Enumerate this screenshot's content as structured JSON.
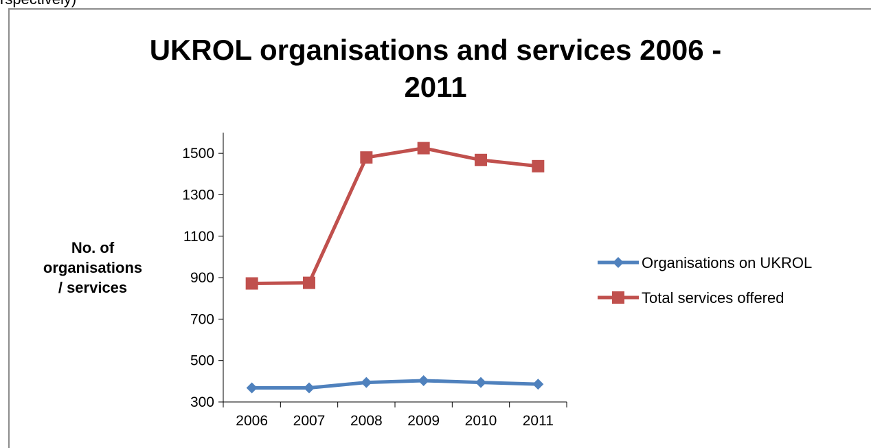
{
  "page": {
    "top_fragment": "rspectively)"
  },
  "chart_data": {
    "type": "line",
    "title_lines": [
      "UKROL organisations and services 2006 -",
      "2011"
    ],
    "ylabel_lines": [
      "No. of",
      "organisations",
      "/ services"
    ],
    "xlabel": "",
    "categories": [
      "2006",
      "2007",
      "2008",
      "2009",
      "2010",
      "2011"
    ],
    "ylim": [
      300,
      1600
    ],
    "yticks": [
      300,
      500,
      700,
      900,
      1100,
      1300,
      1500
    ],
    "grid": false,
    "legend_position": "right",
    "series": [
      {
        "name": "Organisations on UKROL",
        "marker": "diamond",
        "color": "#4f81bd",
        "values": [
          368,
          368,
          394,
          403,
          394,
          386
        ]
      },
      {
        "name": "Total services offered",
        "marker": "square",
        "color": "#c0504d",
        "values": [
          872,
          875,
          1480,
          1525,
          1468,
          1438
        ]
      }
    ]
  }
}
